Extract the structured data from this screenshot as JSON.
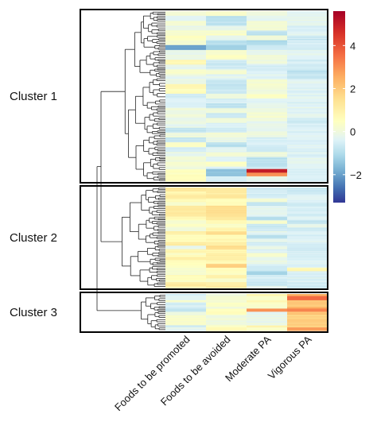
{
  "chart_data": {
    "type": "heatmap",
    "title": "",
    "columns": [
      "Foods to be promoted",
      "Foods to be avoided",
      "Moderate PA",
      "Vigorous PA"
    ],
    "clusters": [
      {
        "label": "Cluster 1",
        "column_means": [
          0.0,
          -0.3,
          -0.2,
          -0.4
        ],
        "row_count": 140,
        "note_values": [
          [
            -1.0,
            0.3,
            -0.5,
            -0.4
          ],
          [
            0.8,
            -0.8,
            0.2,
            -0.4
          ],
          [
            -2.0,
            -1.2,
            -0.6,
            -0.5
          ],
          [
            0.5,
            -1.5,
            5.2,
            -0.4
          ]
        ]
      },
      {
        "label": "Cluster 2",
        "column_means": [
          0.7,
          1.0,
          -0.4,
          -0.5
        ],
        "row_count": 110,
        "note_values": [
          [
            1.2,
            1.5,
            -0.3,
            -0.5
          ],
          [
            0.2,
            0.6,
            -0.6,
            0.8
          ]
        ]
      },
      {
        "label": "Cluster 3",
        "column_means": [
          -0.3,
          0.3,
          0.4,
          2.2
        ],
        "row_count": 35,
        "note_values": [
          [
            -0.8,
            0.5,
            3.0,
            3.2
          ],
          [
            0.3,
            0.0,
            -0.2,
            1.8
          ]
        ]
      }
    ],
    "colorbar": {
      "ticks": [
        4,
        2,
        0,
        -2
      ],
      "range": [
        -3.3,
        5.6
      ],
      "colors": [
        "#313695",
        "#4575b4",
        "#74add1",
        "#abd9e9",
        "#e0f3f8",
        "#ffffbf",
        "#fee090",
        "#fdae61",
        "#f46d43",
        "#d73027",
        "#a50026"
      ]
    },
    "legend_placement": "top-right",
    "dendrogram": "left"
  }
}
